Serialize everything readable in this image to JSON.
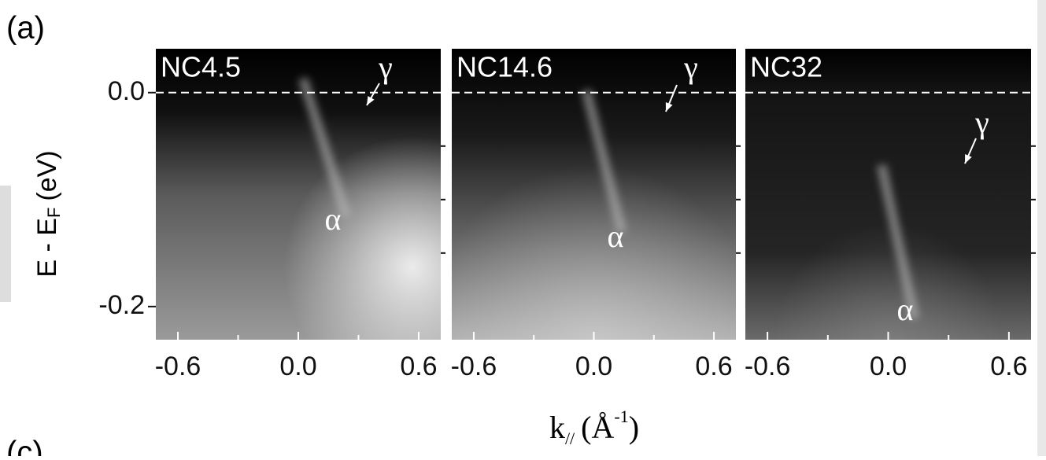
{
  "figure_label": "(a)",
  "next_label": "(c)",
  "y_label": {
    "main": "E - E",
    "sub": "F",
    "unit": "(eV)"
  },
  "x_label": {
    "main": "k",
    "sub": "//",
    "open": "(Å",
    "sup": "-1",
    "close": ")"
  },
  "chart_data": [
    {
      "type": "image",
      "title": "NC4.5",
      "band_labels": [
        "γ",
        "α"
      ],
      "xlim": [
        -0.71,
        0.71
      ],
      "xticks": [
        {
          "value": -0.6,
          "label": "-0.6"
        },
        {
          "value": 0,
          "label": "0.0"
        },
        {
          "value": 0.6,
          "label": "0.6"
        }
      ],
      "xminor": [
        -0.3,
        0.3
      ],
      "ylim": [
        -0.231,
        0.041
      ],
      "yticks": [
        {
          "value": 0,
          "label": "0.0"
        },
        {
          "value": -0.2,
          "label": "-0.2"
        }
      ],
      "yminor": [
        -0.15,
        -0.1,
        -0.05
      ],
      "fermi_line": 0
    },
    {
      "type": "image",
      "title": "NC14.6",
      "band_labels": [
        "γ",
        "α"
      ],
      "xlim": [
        -0.71,
        0.71
      ],
      "xticks": [
        {
          "value": -0.6,
          "label": "-0.6"
        },
        {
          "value": 0,
          "label": "0.0"
        },
        {
          "value": 0.6,
          "label": "0.6"
        }
      ],
      "xminor": [
        -0.3,
        0.3
      ],
      "ylim": [
        -0.231,
        0.041
      ],
      "yminor": [
        -0.15,
        -0.1,
        -0.05
      ],
      "fermi_line": 0
    },
    {
      "type": "image",
      "title": "NC32",
      "band_labels": [
        "γ",
        "α"
      ],
      "xlim": [
        -0.71,
        0.71
      ],
      "xticks": [
        {
          "value": -0.6,
          "label": "-0.6"
        },
        {
          "value": 0,
          "label": "0.0"
        },
        {
          "value": 0.6,
          "label": "0.6"
        }
      ],
      "xminor": [
        -0.3,
        0.3
      ],
      "ylim": [
        -0.231,
        0.041
      ],
      "yminor": [
        -0.15,
        -0.1,
        -0.05
      ],
      "fermi_line": 0
    }
  ]
}
